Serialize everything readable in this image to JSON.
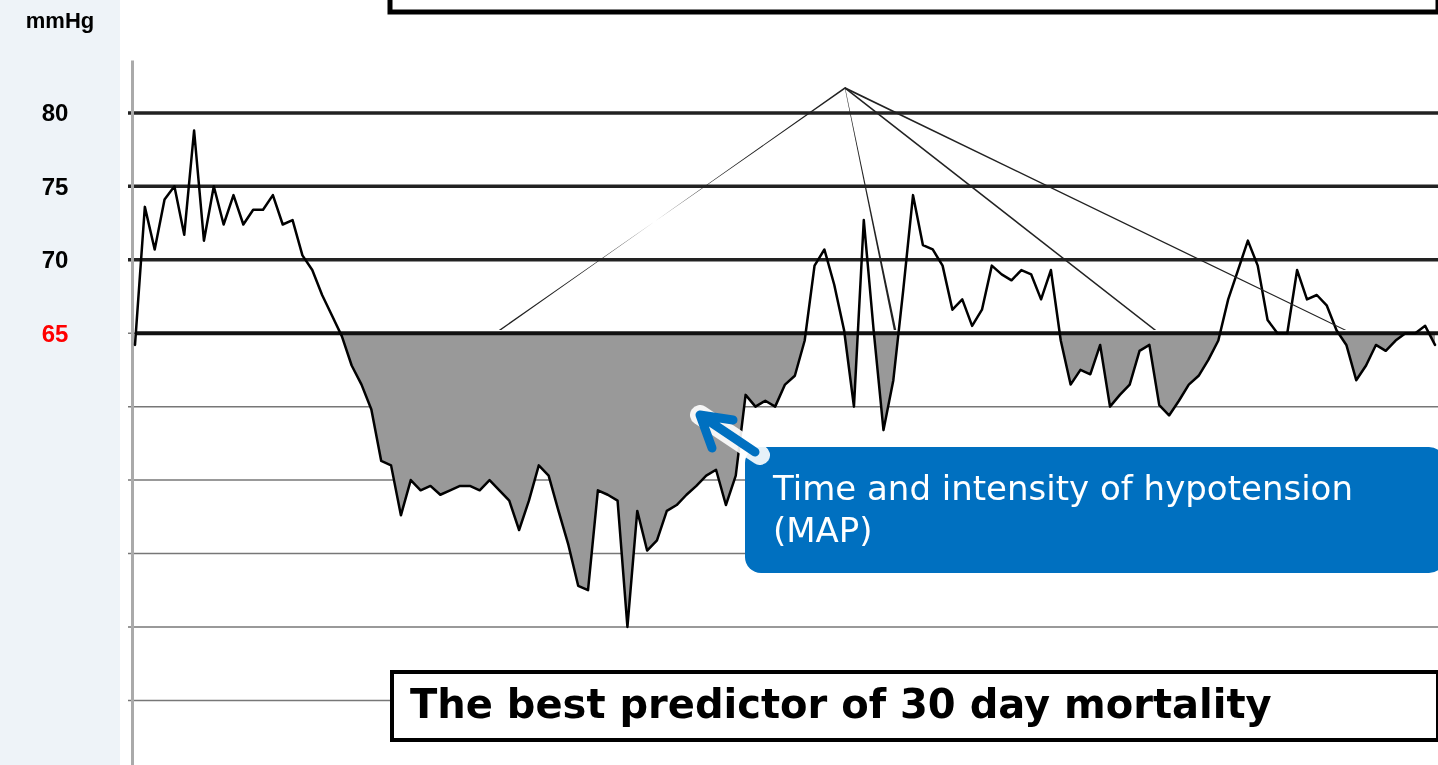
{
  "chart_data": {
    "type": "line",
    "ylabel": "mmHg",
    "categories": [
      null,
      null,
      null,
      null,
      null,
      null,
      null,
      null,
      null,
      null,
      null,
      null,
      null,
      null,
      null,
      null,
      null,
      null,
      null,
      null,
      null,
      null,
      null,
      null,
      null,
      null,
      null,
      null,
      null,
      null,
      null,
      null,
      null,
      null,
      null,
      null,
      null,
      null,
      null,
      null,
      null,
      null,
      null,
      null,
      null,
      null,
      null,
      null,
      null,
      null,
      null,
      null,
      null,
      null,
      null,
      null,
      null,
      null,
      null,
      null,
      null,
      null,
      null,
      null,
      null,
      null,
      null,
      null,
      null,
      null,
      null,
      null,
      null,
      null,
      null,
      null,
      null,
      null,
      null,
      null,
      null,
      null,
      null,
      null,
      null,
      null,
      null,
      null,
      null,
      null,
      null,
      null,
      null,
      null,
      null,
      null,
      null,
      null,
      null,
      null,
      null,
      null,
      null,
      null,
      null,
      null,
      null,
      null,
      null,
      null,
      null,
      null,
      null,
      null,
      null,
      null,
      null,
      null,
      null,
      null,
      null,
      null,
      null,
      null,
      null,
      null,
      null,
      null,
      null,
      null,
      null,
      null,
      null
    ],
    "series": [
      {
        "color": "#000000",
        "values": [
          64.2,
          73.6,
          70.7,
          74.1,
          75.0,
          71.7,
          78.8,
          71.3,
          75.0,
          72.4,
          74.4,
          72.4,
          73.4,
          73.4,
          74.4,
          72.4,
          72.7,
          70.3,
          69.3,
          67.6,
          66.2,
          64.8,
          62.8,
          61.5,
          59.8,
          56.3,
          56.0,
          52.6,
          55.0,
          54.3,
          54.6,
          54.0,
          54.3,
          54.6,
          54.6,
          54.3,
          55.0,
          54.3,
          53.6,
          51.6,
          53.6,
          56.0,
          55.3,
          52.9,
          50.6,
          47.8,
          47.5,
          54.3,
          54.0,
          53.6,
          45.0,
          52.9,
          50.2,
          50.9,
          52.9,
          53.3,
          54.0,
          54.6,
          55.3,
          55.7,
          53.3,
          55.3,
          60.8,
          60.0,
          60.4,
          60.0,
          61.5,
          62.1,
          64.5,
          69.6,
          70.7,
          68.3,
          65.2,
          60.0,
          72.7,
          65.2,
          58.4,
          61.8,
          67.9,
          74.4,
          71.0,
          70.7,
          69.6,
          66.6,
          67.3,
          65.5,
          66.6,
          69.6,
          69.0,
          68.6,
          69.3,
          69.0,
          67.3,
          69.3,
          64.5,
          61.5,
          62.5,
          62.2,
          64.2,
          60.0,
          60.8,
          61.5,
          63.8,
          64.2,
          60.1,
          59.4,
          60.4,
          61.5,
          62.1,
          63.2,
          64.5,
          67.3,
          69.3,
          71.3,
          69.6,
          65.9,
          65.0,
          65.0,
          69.3,
          67.3,
          67.6,
          66.9,
          65.2,
          64.2,
          61.8,
          62.8,
          64.2,
          63.8,
          64.5,
          65.0,
          65.0,
          65.5,
          64.2
        ]
      }
    ],
    "ylim": [
      35.6,
      83.6
    ],
    "yticks": [
      {
        "value": 40,
        "label": null
      },
      {
        "value": 45,
        "label": null
      },
      {
        "value": 50,
        "label": null
      },
      {
        "value": 55,
        "label": null
      },
      {
        "value": 60,
        "label": null
      },
      {
        "value": 65,
        "label": null
      },
      70,
      75,
      80
    ],
    "grid": "y",
    "ref_lines": [
      {
        "axis": "y",
        "value": 65,
        "label": "65"
      }
    ],
    "annotations": [
      "Time and intensity of hypotension (MAP)",
      "The best predictor of 30 day mortality"
    ]
  }
}
